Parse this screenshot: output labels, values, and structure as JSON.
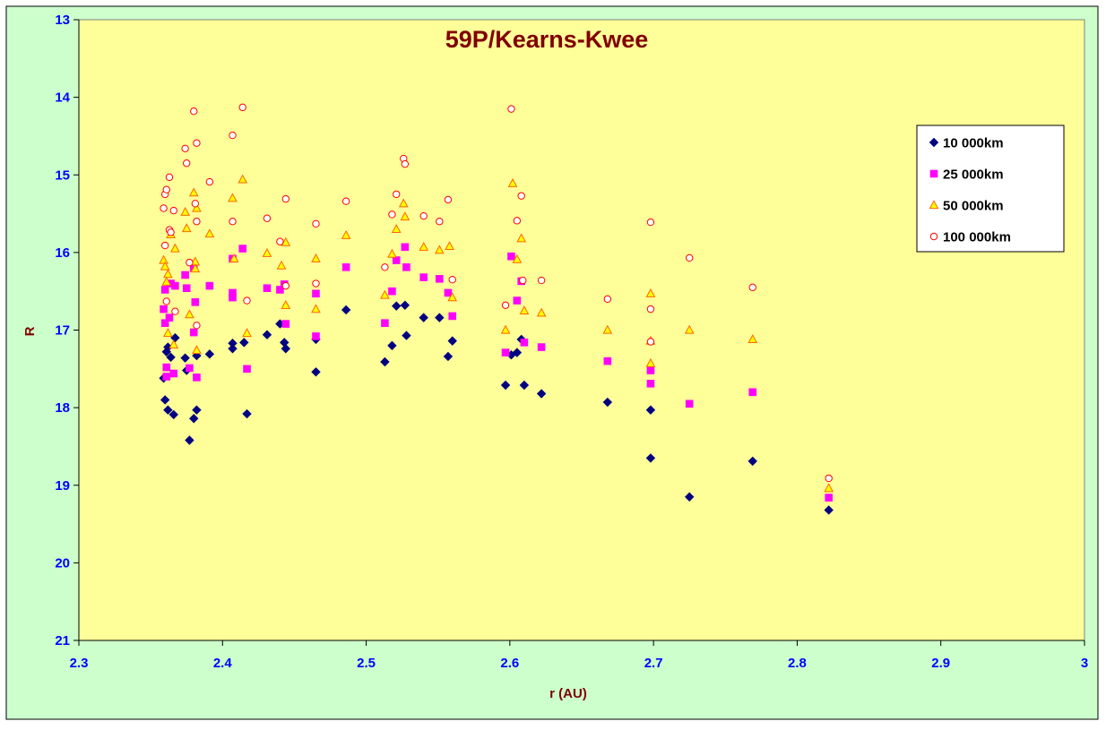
{
  "colors": {
    "outer_bg": "#ccffcc",
    "plot_bg": "#ffff99",
    "title": "#800000",
    "axis_label": "#800000",
    "tick_label": "#0000ff",
    "s10": "#000080",
    "s25": "#ff00ff",
    "s50_fill": "#ffff00",
    "s50_stroke": "#ff6600",
    "s100_fill": "#ffffff",
    "s100_stroke": "#ff0000"
  },
  "chart_data": {
    "type": "scatter",
    "title": "59P/Kearns-Kwee",
    "xlabel": "r (AU)",
    "ylabel": "R",
    "xlim": [
      2.3,
      3.0
    ],
    "ylim": [
      13,
      21
    ],
    "y_reversed": true,
    "x_ticks": [
      2.3,
      2.4,
      2.5,
      2.6,
      2.7,
      2.8,
      2.9,
      3.0
    ],
    "x_tick_labels": [
      "2.3",
      "2.4",
      "2.5",
      "2.6",
      "2.7",
      "2.8",
      "2.9",
      "3"
    ],
    "y_ticks": [
      13,
      14,
      15,
      16,
      17,
      18,
      19,
      20,
      21
    ],
    "y_tick_labels": [
      "13",
      "14",
      "15",
      "16",
      "17",
      "18",
      "19",
      "20",
      "21"
    ],
    "grid": false,
    "legend_position": "top-right",
    "series": [
      {
        "name": "10 000km",
        "marker": "diamond",
        "points": [
          [
            2.359,
            17.62
          ],
          [
            2.36,
            17.9
          ],
          [
            2.361,
            17.28
          ],
          [
            2.362,
            17.22
          ],
          [
            2.362,
            18.03
          ],
          [
            2.364,
            17.35
          ],
          [
            2.366,
            18.09
          ],
          [
            2.367,
            17.1
          ],
          [
            2.374,
            17.36
          ],
          [
            2.375,
            17.52
          ],
          [
            2.377,
            18.42
          ],
          [
            2.38,
            18.14
          ],
          [
            2.382,
            17.33
          ],
          [
            2.382,
            18.03
          ],
          [
            2.391,
            17.31
          ],
          [
            2.407,
            17.17
          ],
          [
            2.407,
            17.24
          ],
          [
            2.415,
            17.16
          ],
          [
            2.417,
            18.08
          ],
          [
            2.431,
            17.06
          ],
          [
            2.44,
            16.92
          ],
          [
            2.443,
            17.16
          ],
          [
            2.444,
            17.24
          ],
          [
            2.465,
            17.12
          ],
          [
            2.465,
            17.54
          ],
          [
            2.486,
            16.74
          ],
          [
            2.513,
            17.41
          ],
          [
            2.518,
            17.2
          ],
          [
            2.521,
            16.69
          ],
          [
            2.527,
            16.68
          ],
          [
            2.528,
            17.07
          ],
          [
            2.54,
            16.84
          ],
          [
            2.551,
            16.84
          ],
          [
            2.557,
            17.34
          ],
          [
            2.56,
            17.14
          ],
          [
            2.597,
            17.71
          ],
          [
            2.601,
            17.32
          ],
          [
            2.605,
            17.29
          ],
          [
            2.608,
            17.12
          ],
          [
            2.61,
            17.71
          ],
          [
            2.622,
            17.82
          ],
          [
            2.668,
            17.93
          ],
          [
            2.698,
            18.03
          ],
          [
            2.698,
            18.65
          ],
          [
            2.725,
            19.15
          ],
          [
            2.769,
            18.69
          ],
          [
            2.822,
            19.32
          ]
        ]
      },
      {
        "name": "25 000km",
        "marker": "square",
        "points": [
          [
            2.359,
            16.73
          ],
          [
            2.36,
            16.48
          ],
          [
            2.36,
            16.91
          ],
          [
            2.361,
            17.48
          ],
          [
            2.361,
            17.6
          ],
          [
            2.363,
            16.84
          ],
          [
            2.364,
            16.4
          ],
          [
            2.366,
            17.56
          ],
          [
            2.367,
            16.43
          ],
          [
            2.374,
            16.29
          ],
          [
            2.375,
            16.46
          ],
          [
            2.377,
            17.49
          ],
          [
            2.38,
            16.2
          ],
          [
            2.38,
            17.03
          ],
          [
            2.381,
            16.64
          ],
          [
            2.382,
            17.61
          ],
          [
            2.391,
            16.43
          ],
          [
            2.407,
            16.08
          ],
          [
            2.407,
            16.52
          ],
          [
            2.407,
            16.58
          ],
          [
            2.414,
            15.95
          ],
          [
            2.417,
            17.5
          ],
          [
            2.431,
            16.46
          ],
          [
            2.44,
            16.48
          ],
          [
            2.443,
            16.41
          ],
          [
            2.444,
            16.92
          ],
          [
            2.465,
            16.53
          ],
          [
            2.465,
            17.08
          ],
          [
            2.486,
            16.19
          ],
          [
            2.513,
            16.91
          ],
          [
            2.518,
            16.5
          ],
          [
            2.521,
            16.1
          ],
          [
            2.527,
            15.93
          ],
          [
            2.528,
            16.19
          ],
          [
            2.54,
            16.32
          ],
          [
            2.551,
            16.34
          ],
          [
            2.557,
            16.52
          ],
          [
            2.56,
            16.82
          ],
          [
            2.597,
            17.29
          ],
          [
            2.601,
            16.05
          ],
          [
            2.605,
            16.62
          ],
          [
            2.608,
            16.37
          ],
          [
            2.61,
            17.16
          ],
          [
            2.622,
            17.22
          ],
          [
            2.668,
            17.4
          ],
          [
            2.698,
            17.52
          ],
          [
            2.698,
            17.69
          ],
          [
            2.725,
            17.95
          ],
          [
            2.769,
            17.8
          ],
          [
            2.822,
            19.16
          ]
        ]
      },
      {
        "name": "50 000km",
        "marker": "triangle",
        "points": [
          [
            2.359,
            16.1
          ],
          [
            2.36,
            16.18
          ],
          [
            2.361,
            16.38
          ],
          [
            2.362,
            17.04
          ],
          [
            2.362,
            16.28
          ],
          [
            2.364,
            15.77
          ],
          [
            2.366,
            17.19
          ],
          [
            2.367,
            15.95
          ],
          [
            2.374,
            15.48
          ],
          [
            2.375,
            15.69
          ],
          [
            2.377,
            16.8
          ],
          [
            2.38,
            15.23
          ],
          [
            2.381,
            16.12
          ],
          [
            2.381,
            16.21
          ],
          [
            2.382,
            15.43
          ],
          [
            2.382,
            17.26
          ],
          [
            2.391,
            15.76
          ],
          [
            2.407,
            15.3
          ],
          [
            2.408,
            16.08
          ],
          [
            2.414,
            15.06
          ],
          [
            2.417,
            17.04
          ],
          [
            2.431,
            16.01
          ],
          [
            2.441,
            16.17
          ],
          [
            2.444,
            15.87
          ],
          [
            2.444,
            16.68
          ],
          [
            2.465,
            16.08
          ],
          [
            2.465,
            16.73
          ],
          [
            2.486,
            15.78
          ],
          [
            2.513,
            16.55
          ],
          [
            2.518,
            16.02
          ],
          [
            2.521,
            15.7
          ],
          [
            2.526,
            15.37
          ],
          [
            2.527,
            15.54
          ],
          [
            2.54,
            15.93
          ],
          [
            2.551,
            15.97
          ],
          [
            2.558,
            15.92
          ],
          [
            2.56,
            16.58
          ],
          [
            2.597,
            17.0
          ],
          [
            2.602,
            15.11
          ],
          [
            2.605,
            16.09
          ],
          [
            2.608,
            15.82
          ],
          [
            2.61,
            16.75
          ],
          [
            2.622,
            16.78
          ],
          [
            2.668,
            17.0
          ],
          [
            2.698,
            16.53
          ],
          [
            2.698,
            17.14
          ],
          [
            2.698,
            17.43
          ],
          [
            2.725,
            17.0
          ],
          [
            2.769,
            17.12
          ],
          [
            2.822,
            19.04
          ]
        ]
      },
      {
        "name": "100 000km",
        "marker": "circle",
        "points": [
          [
            2.359,
            15.43
          ],
          [
            2.36,
            15.25
          ],
          [
            2.36,
            15.91
          ],
          [
            2.361,
            15.19
          ],
          [
            2.361,
            16.63
          ],
          [
            2.363,
            15.71
          ],
          [
            2.363,
            15.03
          ],
          [
            2.364,
            15.74
          ],
          [
            2.366,
            15.46
          ],
          [
            2.367,
            16.76
          ],
          [
            2.374,
            14.66
          ],
          [
            2.375,
            14.85
          ],
          [
            2.377,
            16.13
          ],
          [
            2.38,
            14.18
          ],
          [
            2.381,
            15.37
          ],
          [
            2.382,
            14.59
          ],
          [
            2.382,
            15.6
          ],
          [
            2.382,
            16.94
          ],
          [
            2.391,
            15.09
          ],
          [
            2.407,
            14.49
          ],
          [
            2.407,
            15.6
          ],
          [
            2.414,
            14.13
          ],
          [
            2.417,
            16.62
          ],
          [
            2.431,
            15.56
          ],
          [
            2.44,
            15.86
          ],
          [
            2.444,
            15.31
          ],
          [
            2.444,
            16.43
          ],
          [
            2.465,
            15.63
          ],
          [
            2.465,
            16.4
          ],
          [
            2.486,
            15.34
          ],
          [
            2.513,
            16.19
          ],
          [
            2.518,
            15.51
          ],
          [
            2.521,
            15.25
          ],
          [
            2.526,
            14.79
          ],
          [
            2.527,
            14.86
          ],
          [
            2.54,
            15.53
          ],
          [
            2.551,
            15.6
          ],
          [
            2.557,
            15.32
          ],
          [
            2.56,
            16.35
          ],
          [
            2.597,
            16.68
          ],
          [
            2.601,
            14.15
          ],
          [
            2.605,
            15.59
          ],
          [
            2.608,
            15.27
          ],
          [
            2.609,
            16.36
          ],
          [
            2.622,
            16.36
          ],
          [
            2.668,
            16.6
          ],
          [
            2.698,
            15.61
          ],
          [
            2.698,
            16.73
          ],
          [
            2.698,
            17.15
          ],
          [
            2.725,
            16.07
          ],
          [
            2.769,
            16.45
          ],
          [
            2.822,
            18.91
          ]
        ]
      }
    ]
  }
}
